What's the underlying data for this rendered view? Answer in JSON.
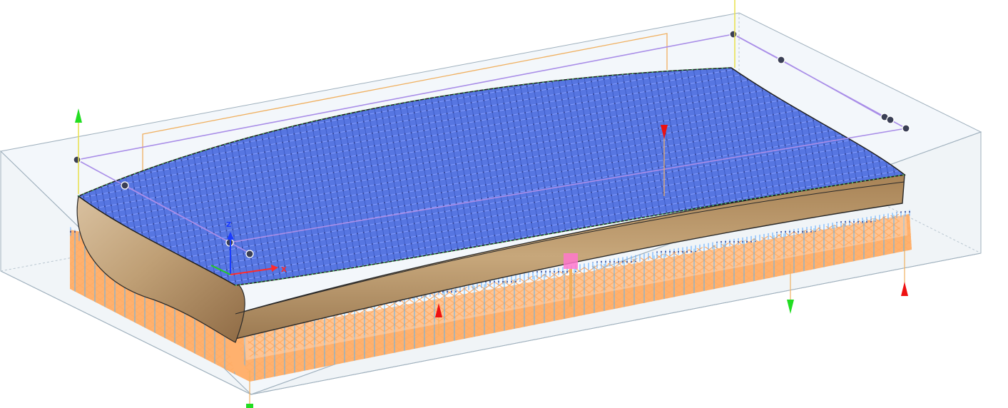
{
  "viewport": {
    "background": "#ffffff",
    "stock_box_color": "#9fb0bd",
    "toolpath_finish_color": "#4a6ee0",
    "toolpath_rough_color": "#ffad66",
    "toolpath_link_color": "#5fb4f0",
    "part_wood_color": "#c8aa7f",
    "part_outline_color": "#222222",
    "boundary_color": "#a98ee8",
    "rapid_color": "#f0b060",
    "handle_color": "#3a3f55"
  },
  "wcs": {
    "z_label": "Z",
    "x_label": "X",
    "z_color": "#1a3cff",
    "x_color": "#ff2a2a",
    "y_color": "#22cc22"
  },
  "markers": {
    "up_color": "#22dd22",
    "down_color": "#ee1111",
    "green_arrow_color": "#22dd22",
    "origin_marker_color": "#ff77cc"
  }
}
